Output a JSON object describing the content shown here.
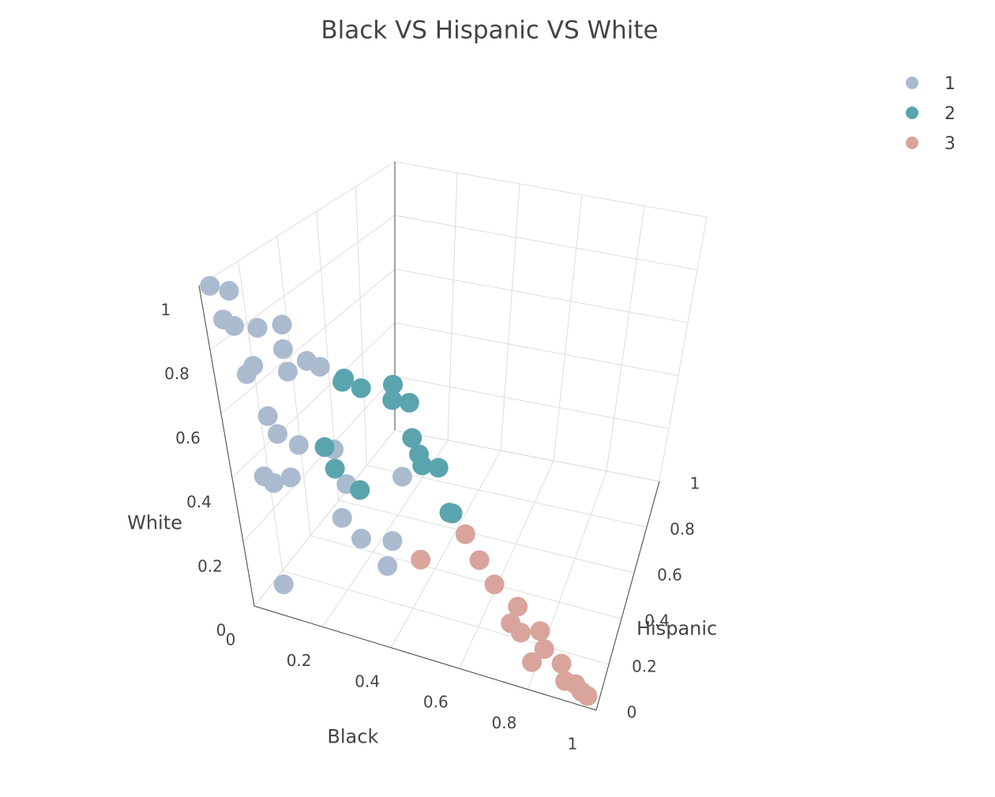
{
  "chart_data": {
    "type": "scatter3d",
    "title": "Black VS Hispanic VS White",
    "x_label": "Black",
    "y_label": "Hispanic",
    "z_label": "White",
    "xlim": [
      0,
      1
    ],
    "ylim": [
      0,
      1
    ],
    "zlim": [
      0,
      1
    ],
    "xticks": [
      0,
      0.2,
      0.4,
      0.6,
      0.8,
      1
    ],
    "yticks": [
      0,
      0.2,
      0.4,
      0.6,
      0.8,
      1
    ],
    "zticks": [
      0,
      0.2,
      0.4,
      0.6,
      0.8,
      1
    ],
    "grid": true,
    "legend": "top-right",
    "series": [
      {
        "name": "1",
        "color": "#aabbd0",
        "x": [
          0.0,
          0.02,
          0.02,
          0.03,
          0.08,
          0.12,
          0.14,
          0.06,
          0.07,
          0.12,
          0.15,
          0.16,
          0.1,
          0.12,
          0.15,
          0.08,
          0.1,
          0.14,
          0.2,
          0.25,
          0.25,
          0.3,
          0.35,
          0.35,
          0.35,
          0.1
        ],
        "y": [
          0.05,
          0.1,
          0.05,
          0.08,
          0.1,
          0.15,
          0.1,
          0.05,
          0.07,
          0.15,
          0.2,
          0.25,
          0.05,
          0.05,
          0.1,
          0.02,
          0.03,
          0.05,
          0.2,
          0.15,
          0.1,
          0.1,
          0.3,
          0.2,
          0.15,
          0.0
        ],
        "z": [
          0.98,
          0.95,
          0.88,
          0.85,
          0.85,
          0.85,
          0.8,
          0.72,
          0.74,
          0.7,
          0.72,
          0.68,
          0.6,
          0.55,
          0.5,
          0.42,
          0.4,
          0.42,
          0.45,
          0.38,
          0.3,
          0.25,
          0.35,
          0.2,
          0.15,
          0.1
        ]
      },
      {
        "name": "2",
        "color": "#5aa4ae",
        "x": [
          0.1,
          0.12,
          0.15,
          0.2,
          0.22,
          0.25,
          0.1,
          0.15,
          0.3,
          0.32,
          0.35,
          0.38,
          0.22,
          0.45,
          0.46
        ],
        "y": [
          0.5,
          0.45,
          0.5,
          0.6,
          0.55,
          0.6,
          0.35,
          0.3,
          0.5,
          0.5,
          0.45,
          0.5,
          0.3,
          0.4,
          0.4
        ],
        "z": [
          0.5,
          0.52,
          0.48,
          0.45,
          0.43,
          0.4,
          0.35,
          0.32,
          0.35,
          0.3,
          0.3,
          0.27,
          0.27,
          0.2,
          0.2
        ]
      },
      {
        "name": "3",
        "color": "#d9a49b",
        "x": [
          0.45,
          0.55,
          0.6,
          0.65,
          0.72,
          0.72,
          0.75,
          0.8,
          0.82,
          0.8,
          0.88,
          0.9,
          0.93,
          0.95,
          0.97
        ],
        "y": [
          0.15,
          0.25,
          0.22,
          0.2,
          0.2,
          0.12,
          0.12,
          0.15,
          0.12,
          0.05,
          0.08,
          0.04,
          0.04,
          0.03,
          0.02
        ],
        "z": [
          0.2,
          0.25,
          0.2,
          0.15,
          0.1,
          0.1,
          0.08,
          0.08,
          0.05,
          0.05,
          0.05,
          0.03,
          0.03,
          0.02,
          0.02
        ]
      }
    ]
  }
}
